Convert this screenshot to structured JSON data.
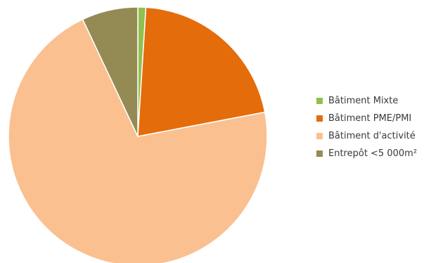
{
  "chart_data": {
    "type": "pie",
    "categories": [
      "Bâtiment Mixte",
      "Bâtiment PME/PMI",
      "Bâtiment d'activité",
      "Entrepôt <5 000m²"
    ],
    "values": [
      1,
      21,
      71,
      7
    ],
    "colors": [
      "#92c050",
      "#e46c0a",
      "#fac090",
      "#948a54"
    ],
    "legend_position": "right",
    "start_angle_deg": 0,
    "direction": "clockwise"
  }
}
